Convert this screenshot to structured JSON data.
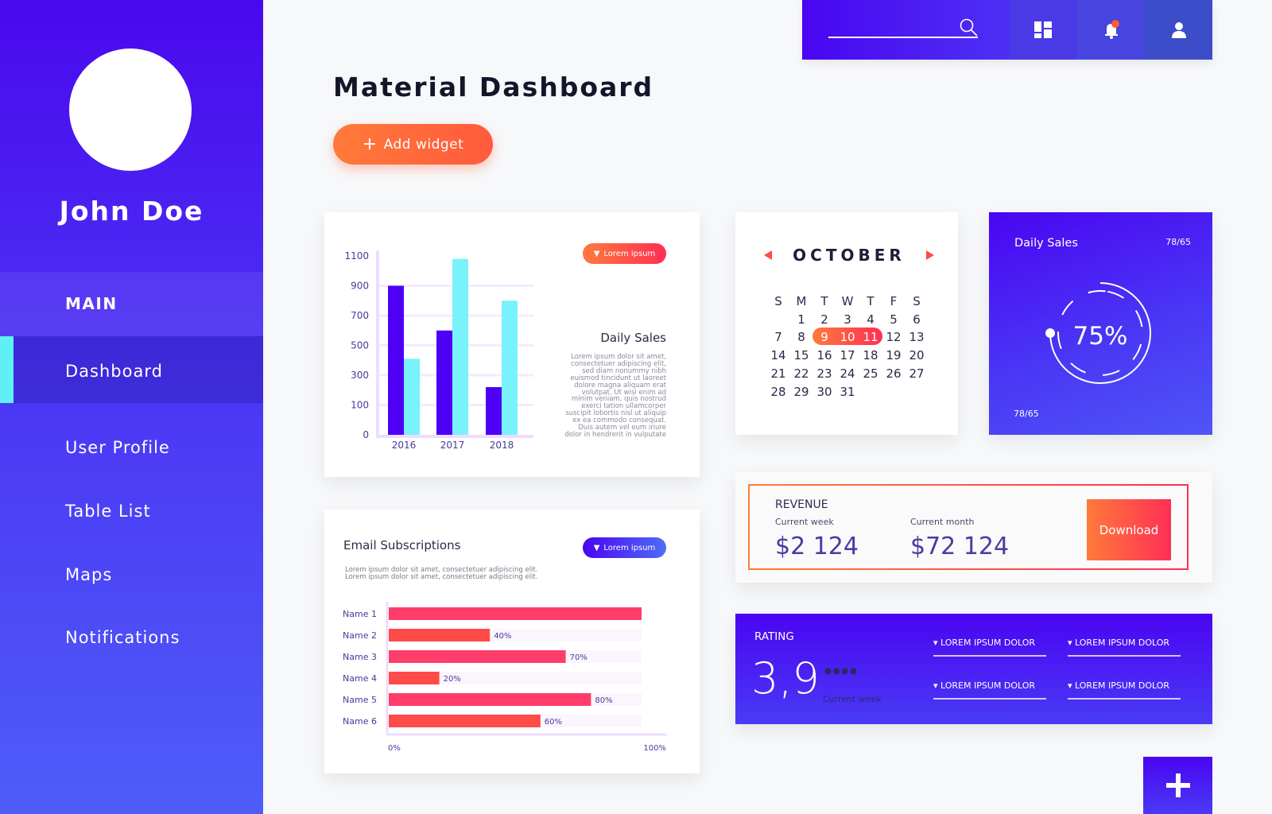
{
  "sidebar": {
    "user_name": "John Doe",
    "section_label": "MAIN",
    "items": [
      {
        "label": "Dashboard",
        "active": true
      },
      {
        "label": "User Profile"
      },
      {
        "label": "Table List"
      },
      {
        "label": "Maps"
      },
      {
        "label": "Notifications"
      }
    ]
  },
  "header": {
    "title": "Material Dashboard",
    "add_widget_label": "Add widget",
    "search_placeholder": "",
    "icons": [
      "search-icon",
      "dashboard-grid-icon",
      "bell-icon",
      "user-icon"
    ],
    "notification_badge_color": "#ff5a3c"
  },
  "daily_sales_chart": {
    "pill_label": "Lorem ipsum",
    "title": "Daily Sales",
    "description": [
      "Lorem ipsum dolor sit amet,",
      "consectetuer adipiscing elit,",
      "sed diam nonummy nibh",
      "euismod tincidunt ut laoreet",
      "dolore magna aliquam erat",
      "volutpat. Ut wisi enim ad",
      "minim veniam, quis nostrud",
      "exerci tation ullamcorper",
      "suscipit lobortis nisl ut aliquip",
      "ex ea commodo consequat.",
      "Duis autem vel eum iriure",
      "dolor in hendrerit in vulputate"
    ]
  },
  "email_subscriptions": {
    "title": "Email Subscriptions",
    "pill_label": "Lorem ipsum",
    "description": [
      "Lorem ipsum dolor sit amet, consectetuer adipiscing elit.",
      "Lorem ipsum dolor sit amet, consectetuer adipiscing elit."
    ]
  },
  "calendar": {
    "month": "OCTOBER",
    "weekdays": [
      "S",
      "M",
      "T",
      "W",
      "T",
      "F",
      "S"
    ],
    "first_weekday_index": 1,
    "days_in_month": 31,
    "selected_range": [
      9,
      11
    ]
  },
  "daily_sales_card": {
    "title": "Daily Sales",
    "top_ratio": "78/65",
    "bottom_ratio": "78/65",
    "percent_label": "75%",
    "percent": 75
  },
  "revenue": {
    "title": "REVENUE",
    "week_label": "Current week",
    "week_value": "$2 124",
    "month_label": "Current month",
    "month_value": "$72 124",
    "download_label": "Download"
  },
  "rating": {
    "title": "RATING",
    "value": "3,9",
    "sub_label": "Current week",
    "dropdowns": [
      "LOREM IPSUM DOLOR",
      "LOREM IPSUM DOLOR",
      "LOREM IPSUM DOLOR",
      "LOREM IPSUM DOLOR"
    ]
  },
  "fab": {
    "icon": "plus-icon"
  },
  "chart_data": [
    {
      "type": "bar",
      "categories": [
        "2016",
        "2017",
        "2018"
      ],
      "y_tick_labels": [
        "0",
        "100",
        "300",
        "500",
        "700",
        "900",
        "1100"
      ],
      "series": [
        {
          "values": [
            900,
            600,
            220
          ],
          "color": "#4d00f5"
        },
        {
          "values": [
            410,
            1080,
            800
          ],
          "color": "#78f2fb"
        }
      ],
      "ylim": [
        0,
        1100
      ],
      "grid": true
    },
    {
      "type": "bar",
      "orientation": "horizontal",
      "categories": [
        "Name 1",
        "Name 2",
        "Name 3",
        "Name 4",
        "Name 5",
        "Name 6"
      ],
      "values": [
        100,
        40,
        70,
        20,
        80,
        60
      ],
      "value_labels": [
        "",
        "40%",
        "70%",
        "20%",
        "80%",
        "60%"
      ],
      "x_tick_labels": [
        "0%",
        "100%"
      ],
      "xlim": [
        0,
        100
      ],
      "colors": [
        "#ff3d6b",
        "#ff4a4a"
      ]
    }
  ]
}
